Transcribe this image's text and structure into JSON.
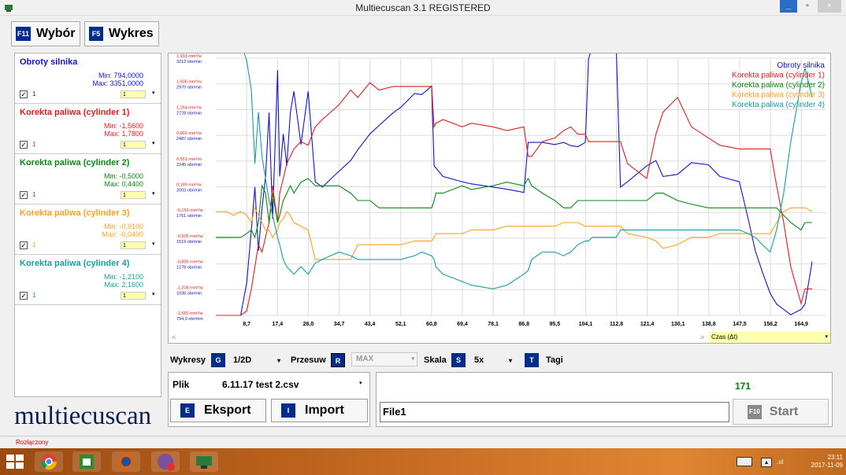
{
  "window": {
    "title": "Multiecuscan 3.1 REGISTERED",
    "min": "_",
    "max": "▫",
    "close": "×"
  },
  "tabs": [
    {
      "key": "F11",
      "label": "Wybór"
    },
    {
      "key": "F5",
      "label": "Wykres"
    }
  ],
  "params": [
    {
      "name": "Obroty silnika",
      "min": "Min: 794,0000",
      "max": "Max: 3351,0000",
      "checked": "✓",
      "num": "1",
      "scale": "1",
      "color": "#1414c8"
    },
    {
      "name": "Korekta paliwa (cylinder 1)",
      "min": "Min: -1,5600",
      "max": "Max: 1,7800",
      "checked": "✓",
      "num": "1",
      "scale": "1",
      "color": "#e01e1e"
    },
    {
      "name": "Korekta paliwa (cylinder 2)",
      "min": "Min: -0,5000",
      "max": "Max: 0,4400",
      "checked": "✓",
      "num": "1",
      "scale": "1",
      "color": "#0a8a14"
    },
    {
      "name": "Korekta paliwa (cylinder 3)",
      "min": "Min: -0,9100",
      "max": "Max: -0,0400",
      "checked": "✓",
      "num": "1",
      "scale": "1",
      "color": "#ffa020"
    },
    {
      "name": "Korekta paliwa (cylinder 4)",
      "min": "Min: -1,2100",
      "max": "Max: 2,1600",
      "checked": "✓",
      "num": "1",
      "scale": "1",
      "color": "#14a0a0"
    }
  ],
  "logo": "multiecuscan",
  "chart_data": {
    "type": "line",
    "xlabel": "Czas (Δt)",
    "x_ticks": [
      "8,7",
      "17,4",
      "26,0",
      "34,7",
      "43,4",
      "52,1",
      "60,8",
      "69,4",
      "78,1",
      "86,8",
      "95,5",
      "104,1",
      "112,8",
      "121,4",
      "130,1",
      "138,8",
      "147,5",
      "156,2",
      "164,9"
    ],
    "y_ticks": [
      {
        "top": "1,933 mm³/w",
        "bottom": "3212 obr/min"
      },
      {
        "top": "1,606 mm³/w",
        "bottom": "2970 obr/min"
      },
      {
        "top": "1,254 mm³/w",
        "bottom": "2728 obr/min"
      },
      {
        "top": "0,902 mm³/w",
        "bottom": "2487 obr/min"
      },
      {
        "top": "0,551 mm³/w",
        "bottom": "2245 obr/min"
      },
      {
        "top": "0,199 mm³/w",
        "bottom": "2003 obr/min"
      },
      {
        "top": "-0,153 mm³/w",
        "bottom": "1761 obr/min"
      },
      {
        "top": "-0,505 mm³/w",
        "bottom": "1519 obr/min"
      },
      {
        "top": "-0,856 mm³/w",
        "bottom": "1278 obr/min"
      },
      {
        "top": "-1,208 mm³/w",
        "bottom": "1036 obr/min"
      },
      {
        "top": "-1,560 mm³/w",
        "bottom": "794,0 obr/min"
      }
    ],
    "legend": [
      "Obroty silnika",
      "Korekta paliwa (cylinder 1)",
      "Korekta paliwa (cylinder 2)",
      "Korekta paliwa (cylinder 3)",
      "Korekta paliwa (cylinder 4)"
    ],
    "legend_position": "top-right",
    "grid": true,
    "x": [
      0,
      3,
      5,
      7,
      8.7,
      10,
      11,
      12,
      13,
      14,
      15,
      16,
      17.4,
      18,
      19,
      20,
      21,
      22,
      24,
      26,
      28,
      30,
      34.7,
      38,
      40,
      43.4,
      46,
      50,
      52.1,
      56,
      58,
      60.8,
      61.5,
      62,
      64,
      69.4,
      72,
      78.1,
      82,
      86.8,
      88,
      89,
      92,
      95.5,
      98,
      100,
      102,
      104.1,
      105,
      106,
      108,
      110,
      112.8,
      114,
      116,
      121.4,
      124,
      126,
      130.1,
      134,
      138.8,
      142,
      147.5,
      150,
      152,
      154,
      156.2,
      158,
      160,
      162,
      164.9,
      166,
      168
    ],
    "series": [
      {
        "name": "Obroty silnika",
        "color": "#1414c8",
        "values": [
          794,
          794,
          794,
          794,
          1100,
          1600,
          2000,
          1400,
          1800,
          2100,
          2700,
          1700,
          3100,
          2100,
          2500,
          2200,
          2700,
          2900,
          2400,
          2900,
          2050,
          2000,
          2150,
          2250,
          2350,
          2500,
          2580,
          2700,
          2750,
          2880,
          2870,
          2950,
          2200,
          2180,
          2100,
          2050,
          2030,
          2000,
          1980,
          1950,
          2420,
          2420,
          2420,
          2400,
          2420,
          2390,
          2380,
          2420,
          3200,
          3320,
          3300,
          3330,
          3320,
          2000,
          2050,
          2200,
          2250,
          2100,
          2120,
          2230,
          2210,
          2100,
          2050,
          1700,
          1400,
          1200,
          1000,
          900,
          850,
          800,
          850,
          900,
          1300
        ]
      },
      {
        "name": "Korekta paliwa (cylinder 1)",
        "color": "#e01e1e",
        "values": [
          -1.56,
          -1.56,
          -1.56,
          -1.56,
          -1.5,
          -1.2,
          -0.9,
          -0.6,
          -0.7,
          -0.5,
          -0.3,
          0.2,
          -0.3,
          0.1,
          0.3,
          0.5,
          0.6,
          0.7,
          0.8,
          0.75,
          1.0,
          1.1,
          1.3,
          1.5,
          1.4,
          1.6,
          1.5,
          1.55,
          1.55,
          1.55,
          1.55,
          1.55,
          1.0,
          1.05,
          1.1,
          1.0,
          1.05,
          1.0,
          0.95,
          1.0,
          0.6,
          0.6,
          0.8,
          0.85,
          0.95,
          1.0,
          0.9,
          0.9,
          0.8,
          0.8,
          0.8,
          0.8,
          0.8,
          0.8,
          0.5,
          0.3,
          0.9,
          1.2,
          1.4,
          1.0,
          0.85,
          0.75,
          0.7,
          0.7,
          0.7,
          0.7,
          0.7,
          0.2,
          -0.3,
          -0.9,
          -1.4,
          -1.2,
          -1.2
        ]
      },
      {
        "name": "Korekta paliwa (cylinder 2)",
        "color": "#0a8a14",
        "values": [
          -0.5,
          -0.5,
          -0.5,
          -0.5,
          -0.45,
          -0.4,
          -0.5,
          -0.3,
          0.2,
          0.1,
          -0.3,
          0.1,
          -0.3,
          -0.2,
          0.0,
          0.1,
          0.2,
          0.1,
          0.25,
          0.3,
          0.2,
          0.2,
          0.2,
          0.1,
          0.0,
          0.0,
          -0.1,
          -0.1,
          -0.1,
          -0.1,
          -0.1,
          -0.1,
          0.0,
          0.1,
          0.1,
          0.2,
          0.15,
          0.2,
          0.25,
          0.2,
          0.3,
          0.2,
          0.1,
          0.0,
          -0.1,
          -0.1,
          0.0,
          0.0,
          0.0,
          0.0,
          0.0,
          0.0,
          0.0,
          0.0,
          0.0,
          0.0,
          0.1,
          0.1,
          0.0,
          -0.05,
          -0.1,
          -0.1,
          -0.1,
          -0.1,
          -0.1,
          -0.1,
          -0.1,
          -0.1,
          -0.2,
          -0.3,
          -0.4,
          -0.3,
          -0.3
        ]
      },
      {
        "name": "Korekta paliwa (cylinder 3)",
        "color": "#ffa020",
        "values": [
          -0.15,
          -0.15,
          -0.2,
          -0.15,
          -0.2,
          -0.3,
          -0.1,
          -0.2,
          -0.3,
          -0.4,
          -0.4,
          -0.5,
          -0.4,
          -0.3,
          -0.25,
          -0.15,
          -0.2,
          -0.3,
          -0.35,
          -0.4,
          -0.8,
          -0.8,
          -0.8,
          -0.8,
          -0.6,
          -0.6,
          -0.6,
          -0.6,
          -0.6,
          -0.55,
          -0.55,
          -0.55,
          -0.5,
          -0.45,
          -0.45,
          -0.45,
          -0.4,
          -0.4,
          -0.35,
          -0.35,
          -0.35,
          -0.35,
          -0.35,
          -0.35,
          -0.3,
          -0.3,
          -0.3,
          -0.35,
          -0.35,
          -0.35,
          -0.35,
          -0.35,
          -0.35,
          -0.35,
          -0.45,
          -0.5,
          -0.55,
          -0.65,
          -0.6,
          -0.5,
          -0.5,
          -0.45,
          -0.45,
          -0.45,
          -0.45,
          -0.45,
          -0.45,
          -0.3,
          -0.15,
          -0.1,
          -0.1,
          -0.1,
          -0.15
        ]
      },
      {
        "name": "Korekta paliwa (cylinder 4)",
        "color": "#14a0a0",
        "values": [
          2.16,
          2.16,
          2.16,
          2.16,
          1.9,
          1.5,
          0.5,
          1.2,
          0.6,
          0.3,
          0.0,
          -0.2,
          -0.5,
          -0.6,
          -0.8,
          -0.9,
          -0.95,
          -1.0,
          -0.9,
          -1.0,
          -0.85,
          -0.8,
          -0.7,
          -0.75,
          -0.8,
          -0.8,
          -0.8,
          -0.8,
          -0.8,
          -0.75,
          -0.7,
          -0.75,
          -0.8,
          -0.9,
          -1.0,
          -1.1,
          -1.15,
          -1.2,
          -1.15,
          -1.0,
          -0.95,
          -0.8,
          -0.7,
          -0.7,
          -0.75,
          -0.7,
          -0.6,
          -0.55,
          -0.55,
          -0.5,
          -0.5,
          -0.5,
          -0.5,
          -0.4,
          -0.4,
          -0.4,
          -0.4,
          -0.4,
          -0.4,
          -0.4,
          -0.4,
          -0.4,
          -0.4,
          -0.45,
          -0.5,
          -0.6,
          -0.7,
          -0.4,
          0.1,
          0.8,
          1.6,
          1.8,
          1.4
        ]
      }
    ]
  },
  "scroll": {
    "left": "<",
    "right": ">"
  },
  "czas_select": "Czas (Δt)",
  "toolbar": {
    "wykresy": "Wykresy",
    "wykresy_key": "G",
    "wykresy_val": "1/2D",
    "przesuw": "Przesuw",
    "przesuw_key": "R",
    "przesuw_val": "MAX",
    "skala": "Skala",
    "skala_key": "S",
    "skala_val": "5x",
    "tagi_key": "T",
    "tagi": "Tagi",
    "arrow": "▾"
  },
  "plik": {
    "label": "Plik",
    "file": "6.11.17 test 2.csv"
  },
  "export": {
    "key": "E",
    "label": "Eksport"
  },
  "import": {
    "key": "I",
    "label": "Import"
  },
  "run": {
    "counter": "171",
    "file_value": "File1",
    "start_key": "F10",
    "start_label": "Start"
  },
  "status": "Rozłączony",
  "clock": {
    "time": "23:11",
    "date": "2017-11-09"
  }
}
